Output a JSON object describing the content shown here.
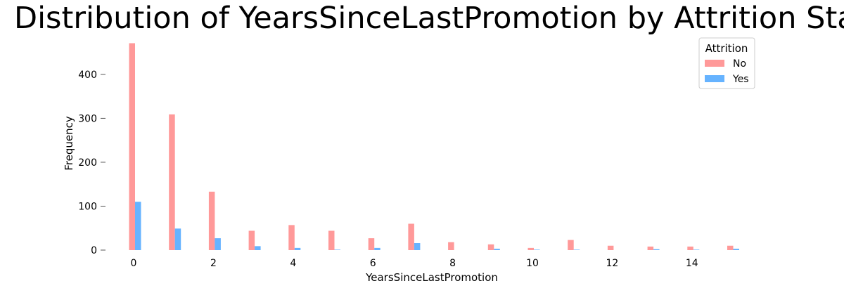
{
  "chart_data": {
    "type": "bar",
    "title": "Distribution of YearsSinceLastPromotion by Attrition Status",
    "xlabel": "YearsSinceLastPromotion",
    "ylabel": "Frequency",
    "xlim": [
      -0.5,
      15.5
    ],
    "ylim": [
      0,
      475
    ],
    "xticks": [
      0,
      2,
      4,
      6,
      8,
      10,
      12,
      14
    ],
    "yticks": [
      0,
      100,
      200,
      300,
      400
    ],
    "grid": false,
    "legend": {
      "title": "Attrition",
      "placement": "top-right"
    },
    "x": [
      0,
      1,
      2,
      3,
      4,
      5,
      6,
      7,
      8,
      9,
      10,
      11,
      12,
      13,
      14,
      15
    ],
    "series": [
      {
        "name": "No",
        "color": "#ff9999",
        "values": [
          471,
          309,
          133,
          44,
          57,
          44,
          27,
          60,
          18,
          13,
          5,
          23,
          10,
          8,
          8,
          10
        ]
      },
      {
        "name": "Yes",
        "color": "#66b3ff",
        "values": [
          110,
          49,
          27,
          9,
          5,
          1,
          5,
          16,
          0,
          3,
          1,
          1,
          0,
          2,
          1,
          3
        ]
      }
    ]
  }
}
